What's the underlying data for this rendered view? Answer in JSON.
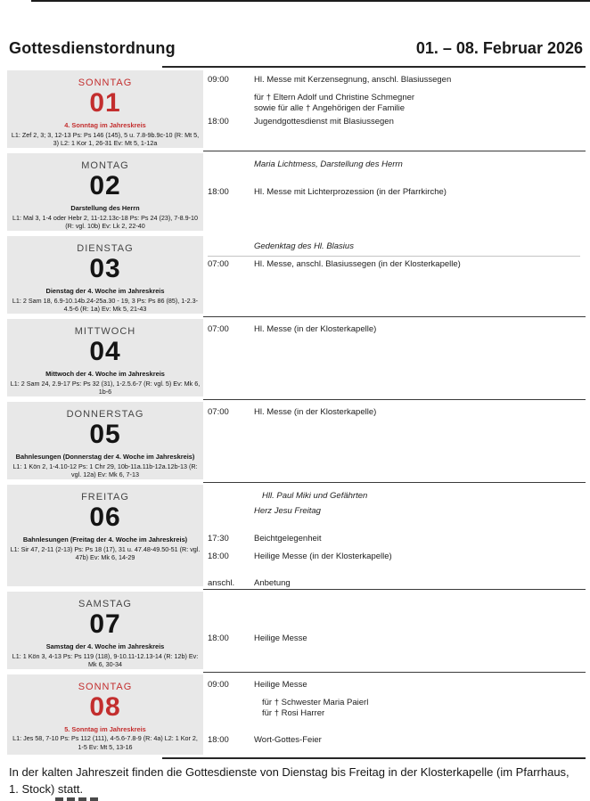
{
  "header": {
    "title": "Gottesdienstordnung",
    "date_range": "01. – 08. Februar 2026"
  },
  "colors": {
    "accent_red": "#c32e2e",
    "day_cell_background": "#e8e8e8"
  },
  "days": [
    {
      "name": "SONNTAG",
      "number": "01",
      "sunday": true,
      "feast": "4. Sonntag im Jahreskreis",
      "readings": "L1: Zef 2, 3; 3, 12-13 Ps: Ps 146 (145), 5 u. 7.8-9b.9c-10 (R: Mt 5, 3) L2: 1 Kor 1, 26-31 Ev: Mt 5, 1-12a",
      "entries": [
        {
          "time": "09:00",
          "text": "Hl. Messe mit Kerzensegnung, anschl. Blasiussegen",
          "style": "normal"
        },
        {
          "time": "",
          "text": "für † Eltern Adolf und Christine Schmegner\nsowie für alle † Angehörigen der Familie",
          "style": "intention",
          "gap": "s"
        },
        {
          "time": "18:00",
          "text": "Jugendgottesdienst mit Blasiussegen",
          "style": "normal"
        }
      ]
    },
    {
      "name": "MONTAG",
      "number": "02",
      "sunday": false,
      "feast": "Darstellung des Herrn",
      "readings": "L1: Mal 3, 1-4 oder Hebr 2, 11-12.13c-18 Ps: Ps 24 (23), 7-8.9-10 (R: vgl. 10b) Ev: Lk 2, 22-40",
      "entries": [
        {
          "time": "",
          "text": "Maria Lichtmess, Darstellung des Herrn",
          "style": "feast"
        },
        {
          "time": "18:00",
          "text": "Hl. Messe mit Lichterprozession (in der Pfarrkirche)",
          "style": "normal",
          "gap": "m"
        }
      ]
    },
    {
      "name": "DIENSTAG",
      "number": "03",
      "sunday": false,
      "feast": "Dienstag der 4. Woche im Jahreskreis",
      "readings": "L1: 2 Sam 18, 6.9-10.14b.24-25a.30 - 19, 3 Ps: Ps 86 (85), 1-2.3-4.5-6 (R: 1a) Ev: Mk 5, 21-43",
      "entries": [
        {
          "time": "",
          "text": "Gedenktag des Hl. Blasius",
          "style": "feast",
          "underline": true
        },
        {
          "time": "07:00",
          "text": "Hl. Messe, anschl. Blasiussegen (in der Klosterkapelle)",
          "style": "normal"
        }
      ]
    },
    {
      "name": "MITTWOCH",
      "number": "04",
      "sunday": false,
      "feast": "Mittwoch der 4. Woche im Jahreskreis",
      "readings": "L1: 2 Sam 24, 2.9-17 Ps: Ps 32 (31), 1-2.5.6-7 (R: vgl. 5) Ev: Mk 6, 1b-6",
      "entries": [
        {
          "time": "07:00",
          "text": "Hl. Messe (in der Klosterkapelle)",
          "style": "normal"
        }
      ]
    },
    {
      "name": "DONNERSTAG",
      "number": "05",
      "sunday": false,
      "feast": "Bahnlesungen (Donnerstag der 4. Woche im Jahreskreis)",
      "readings": "L1: 1 Kön 2, 1-4.10-12 Ps: 1 Chr 29, 10b-11a.11b-12a.12b-13 (R: vgl. 12a) Ev: Mk 6, 7-13",
      "entries": [
        {
          "time": "07:00",
          "text": "Hl. Messe (in der Klosterkapelle)",
          "style": "normal"
        }
      ]
    },
    {
      "name": "FREITAG",
      "number": "06",
      "sunday": false,
      "feast": "Bahnlesungen (Freitag der 4. Woche im Jahreskreis)",
      "readings": "L1: Sir 47, 2-11 (2-13) Ps: Ps 18 (17), 31 u. 47.48-49.50-51 (R: vgl. 47b) Ev: Mk 6, 14-29",
      "entries": [
        {
          "time": "",
          "text": "Hll. Paul Miki und Gefährten",
          "style": "feast",
          "indent": true
        },
        {
          "time": "",
          "text": "Herz Jesu Freitag",
          "style": "feast"
        },
        {
          "time": "17:30",
          "text": "Beichtgelegenheit",
          "style": "normal",
          "gap": "m"
        },
        {
          "time": "18:00",
          "text": "Heilige Messe (in der Klosterkapelle)",
          "style": "normal",
          "gap": "s"
        },
        {
          "time": "anschl.",
          "text": "Anbetung",
          "style": "normal",
          "gap": "m"
        }
      ]
    },
    {
      "name": "SAMSTAG",
      "number": "07",
      "sunday": false,
      "feast": "Samstag der 4. Woche im Jahreskreis",
      "readings": "L1: 1 Kön 3, 4-13 Ps: Ps 119 (118), 9-10.11-12.13-14 (R: 12b) Ev: Mk 6, 30-34",
      "entries": [
        {
          "time": "18:00",
          "text": "Heilige Messe",
          "style": "normal",
          "gap": "l"
        }
      ]
    },
    {
      "name": "SONNTAG",
      "number": "08",
      "sunday": true,
      "feast": "5. Sonntag im Jahreskreis",
      "readings": "L1: Jes 58, 7-10 Ps: Ps 112 (111), 4-5.6-7.8-9 (R: 4a) L2: 1 Kor 2, 1-5 Ev: Mt 5, 13-16",
      "entries": [
        {
          "time": "09:00",
          "text": "Heilige Messe",
          "style": "normal"
        },
        {
          "time": "",
          "text": "für † Schwester Maria Paierl\nfür † Rosi Harrer",
          "style": "intention",
          "indent": true,
          "gap": "s"
        },
        {
          "time": "18:00",
          "text": "Wort-Gottes-Feier",
          "style": "normal",
          "gap": "m"
        }
      ]
    }
  ],
  "footer": {
    "note": "In der kalten Jahreszeit finden die Gottesdienste von Dienstag bis Freitag in der Klosterkapelle (im Pfarrhaus, 1. Stock) statt."
  }
}
